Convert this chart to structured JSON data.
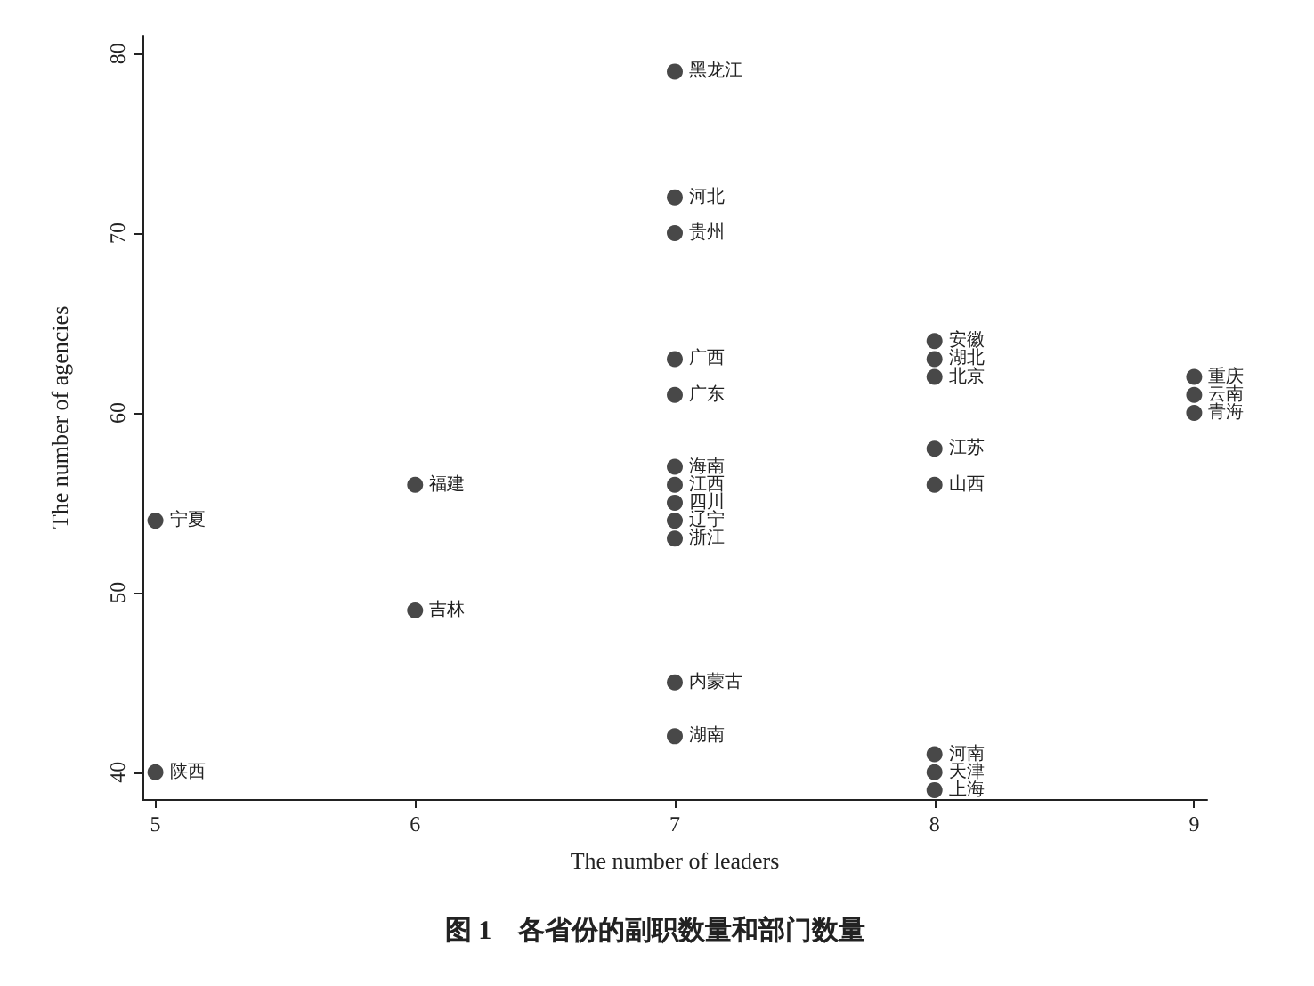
{
  "chart_data": {
    "type": "scatter",
    "title": "图 1　各省份的副职数量和部门数量",
    "xlabel": "The number of leaders",
    "ylabel": "The number of agencies",
    "x": [
      5,
      5,
      6,
      6,
      7,
      7,
      7,
      7,
      7,
      7,
      7,
      7,
      7,
      7,
      7,
      7,
      8,
      8,
      8,
      8,
      8,
      8,
      8,
      8,
      9,
      9,
      9
    ],
    "values": [
      54,
      40,
      56,
      49,
      79,
      72,
      70,
      63,
      61,
      57,
      56,
      55,
      54,
      53,
      45,
      42,
      64,
      63,
      62,
      58,
      56,
      41,
      40,
      39,
      62,
      61,
      60
    ],
    "color": "#1a1a1a",
    "marker": "circle",
    "annotations": [
      {
        "text": "宁夏",
        "x": 5,
        "y": 54
      },
      {
        "text": "陕西",
        "x": 5,
        "y": 40
      },
      {
        "text": "福建",
        "x": 6,
        "y": 56
      },
      {
        "text": "吉林",
        "x": 6,
        "y": 49
      },
      {
        "text": "黑龙江",
        "x": 7,
        "y": 79
      },
      {
        "text": "河北",
        "x": 7,
        "y": 72
      },
      {
        "text": "贵州",
        "x": 7,
        "y": 70
      },
      {
        "text": "广西",
        "x": 7,
        "y": 63
      },
      {
        "text": "广东",
        "x": 7,
        "y": 61
      },
      {
        "text": "海南",
        "x": 7,
        "y": 57
      },
      {
        "text": "江西",
        "x": 7,
        "y": 56
      },
      {
        "text": "四川",
        "x": 7,
        "y": 55
      },
      {
        "text": "辽宁",
        "x": 7,
        "y": 54
      },
      {
        "text": "浙江",
        "x": 7,
        "y": 53
      },
      {
        "text": "内蒙古",
        "x": 7,
        "y": 45
      },
      {
        "text": "湖南",
        "x": 7,
        "y": 42
      },
      {
        "text": "安徽",
        "x": 8,
        "y": 64
      },
      {
        "text": "湖北",
        "x": 8,
        "y": 63
      },
      {
        "text": "北京",
        "x": 8,
        "y": 62
      },
      {
        "text": "江苏",
        "x": 8,
        "y": 58
      },
      {
        "text": "山西",
        "x": 8,
        "y": 56
      },
      {
        "text": "河南",
        "x": 8,
        "y": 41
      },
      {
        "text": "天津",
        "x": 8,
        "y": 40
      },
      {
        "text": "上海",
        "x": 8,
        "y": 39
      },
      {
        "text": "重庆",
        "x": 9,
        "y": 62
      },
      {
        "text": "云南",
        "x": 9,
        "y": 61
      },
      {
        "text": "青海",
        "x": 9,
        "y": 60
      }
    ],
    "xlim": [
      4.95,
      9.05
    ],
    "ylim": [
      38.5,
      81
    ],
    "xticks": [
      5,
      6,
      7,
      8,
      9
    ],
    "yticks": [
      40,
      50,
      60,
      70,
      80
    ],
    "grid": false
  }
}
